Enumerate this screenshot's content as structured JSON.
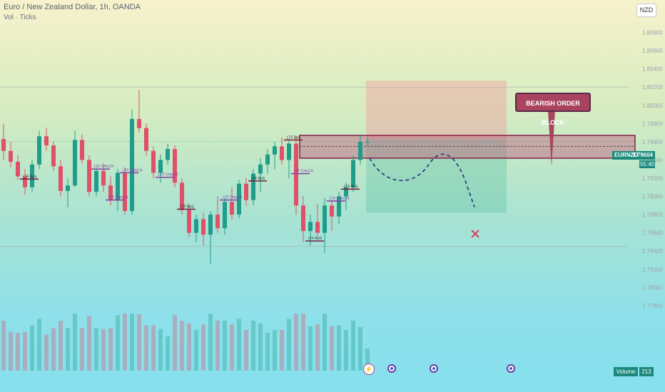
{
  "header": {
    "symbol_title": "Euro / New Zealand Dollar, 1h, OANDA",
    "indicator_title": "Vol · Ticks"
  },
  "toolbar": {
    "currency": "NZD"
  },
  "price_tag": {
    "symbol": "EURNZD",
    "price": "1.79604",
    "countdown": "55:40"
  },
  "annotation": {
    "callout_text": "BEARISH ORDER BLOCK"
  },
  "volume_badge": {
    "label": "Volume",
    "value": "213"
  },
  "colors": {
    "bull": "#1f9c8a",
    "bear": "#e0506a",
    "order_block": "#c05a7c",
    "callout": "#a8445f",
    "projection": "#2a2f7a",
    "target_x": "#d94060"
  },
  "icons": [
    "flash-icon",
    "event-icon",
    "event-icon",
    "event-icon"
  ],
  "chart_data": {
    "type": "candlestick",
    "y_axis": {
      "ticks": [
        "1.80800",
        "1.80600",
        "1.80400",
        "1.80200",
        "1.80000",
        "1.79800",
        "1.79600",
        "1.79400",
        "1.79200",
        "1.79000",
        "1.78800",
        "1.78600",
        "1.78400",
        "1.78200",
        "1.78000",
        "1.77800"
      ],
      "range": [
        1.774,
        1.81
      ]
    },
    "current_price": 1.79604,
    "order_block": {
      "top": 1.7967,
      "bottom": 1.7942
    },
    "order_block_mid": 1.7955,
    "projection_short": {
      "entry": 1.7963,
      "stop": 1.8027,
      "target": 1.7882
    },
    "horizontal_levels": [
      1.802,
      1.7845
    ],
    "structure_labels": [
      {
        "text": "LTF BoS",
        "price": 1.7919,
        "bar": 3,
        "style": "bos"
      },
      {
        "text": "LTF CHoCH",
        "price": 1.793,
        "bar": 13,
        "style": "choch"
      },
      {
        "text": "LTF CHoCH",
        "price": 1.7896,
        "bar": 15,
        "style": "choch"
      },
      {
        "text": "LTF CHoCH",
        "price": 1.7926,
        "bar": 17,
        "style": "choch"
      },
      {
        "text": "LTF CHoCH",
        "price": 1.7921,
        "bar": 22,
        "style": "choch"
      },
      {
        "text": "LTF BoS",
        "price": 1.7886,
        "bar": 25,
        "style": "bos"
      },
      {
        "text": "LTF CHoCH",
        "price": 1.7896,
        "bar": 31,
        "style": "choch"
      },
      {
        "text": "LTF BoS",
        "price": 1.7917,
        "bar": 35,
        "style": "bos"
      },
      {
        "text": "LTF BoS",
        "price": 1.7962,
        "bar": 40,
        "style": "bos"
      },
      {
        "text": "LTF CHoCH",
        "price": 1.7925,
        "bar": 41,
        "style": "choch"
      },
      {
        "text": "LTF BoS",
        "price": 1.7851,
        "bar": 43,
        "style": "bos"
      },
      {
        "text": "LTF CHoCH",
        "price": 1.7895,
        "bar": 46,
        "style": "choch"
      },
      {
        "text": "LTF BoS",
        "price": 1.7908,
        "bar": 48,
        "style": "bos"
      }
    ],
    "candles": [
      [
        1.7963,
        1.798,
        1.794,
        1.795
      ],
      [
        1.795,
        1.796,
        1.7932,
        1.7938
      ],
      [
        1.7938,
        1.7945,
        1.7918,
        1.7922
      ],
      [
        1.7922,
        1.793,
        1.7902,
        1.791
      ],
      [
        1.791,
        1.794,
        1.7905,
        1.7935
      ],
      [
        1.7935,
        1.7972,
        1.793,
        1.7966
      ],
      [
        1.7966,
        1.7975,
        1.795,
        1.7956
      ],
      [
        1.7956,
        1.796,
        1.7928,
        1.7933
      ],
      [
        1.7933,
        1.794,
        1.79,
        1.7906
      ],
      [
        1.7906,
        1.792,
        1.7888,
        1.7912
      ],
      [
        1.7912,
        1.7972,
        1.791,
        1.7962
      ],
      [
        1.7962,
        1.7968,
        1.7936,
        1.794
      ],
      [
        1.794,
        1.7945,
        1.79,
        1.7905
      ],
      [
        1.7905,
        1.7932,
        1.79,
        1.7928
      ],
      [
        1.7928,
        1.7936,
        1.7905,
        1.7912
      ],
      [
        1.7912,
        1.7922,
        1.789,
        1.7896
      ],
      [
        1.7896,
        1.793,
        1.7884,
        1.7926
      ],
      [
        1.7926,
        1.7932,
        1.788,
        1.7884
      ],
      [
        1.7884,
        1.7995,
        1.788,
        1.7985
      ],
      [
        1.7985,
        1.8017,
        1.797,
        1.7975
      ],
      [
        1.7975,
        1.798,
        1.7945,
        1.795
      ],
      [
        1.795,
        1.7955,
        1.792,
        1.7926
      ],
      [
        1.7926,
        1.7946,
        1.7915,
        1.794
      ],
      [
        1.794,
        1.7958,
        1.7935,
        1.7952
      ],
      [
        1.7952,
        1.7956,
        1.791,
        1.7915
      ],
      [
        1.7915,
        1.792,
        1.788,
        1.7885
      ],
      [
        1.7885,
        1.7892,
        1.7855,
        1.786
      ],
      [
        1.786,
        1.788,
        1.785,
        1.7875
      ],
      [
        1.7875,
        1.7882,
        1.7846,
        1.7858
      ],
      [
        1.7858,
        1.7884,
        1.7826,
        1.788
      ],
      [
        1.788,
        1.79,
        1.786,
        1.7865
      ],
      [
        1.7865,
        1.7898,
        1.7858,
        1.7894
      ],
      [
        1.7894,
        1.791,
        1.7874,
        1.788
      ],
      [
        1.788,
        1.7918,
        1.7876,
        1.7914
      ],
      [
        1.7914,
        1.792,
        1.789,
        1.7896
      ],
      [
        1.7896,
        1.793,
        1.789,
        1.7925
      ],
      [
        1.7925,
        1.7942,
        1.7905,
        1.7935
      ],
      [
        1.7935,
        1.7952,
        1.7925,
        1.7946
      ],
      [
        1.7946,
        1.796,
        1.793,
        1.7955
      ],
      [
        1.7955,
        1.7965,
        1.7935,
        1.794
      ],
      [
        1.794,
        1.7962,
        1.792,
        1.7958
      ],
      [
        1.7958,
        1.7966,
        1.788,
        1.789
      ],
      [
        1.789,
        1.79,
        1.785,
        1.7862
      ],
      [
        1.7862,
        1.788,
        1.7846,
        1.7872
      ],
      [
        1.7872,
        1.7892,
        1.7856,
        1.786
      ],
      [
        1.786,
        1.7898,
        1.7838,
        1.789
      ],
      [
        1.789,
        1.7896,
        1.7862,
        1.7878
      ],
      [
        1.7878,
        1.7905,
        1.787,
        1.79
      ],
      [
        1.79,
        1.7915,
        1.7885,
        1.791
      ],
      [
        1.791,
        1.7945,
        1.7905,
        1.794
      ],
      [
        1.794,
        1.7968,
        1.7935,
        1.796
      ],
      [
        1.796,
        1.7965,
        1.7955,
        1.796
      ]
    ],
    "volume_scale_hint": "relative"
  }
}
